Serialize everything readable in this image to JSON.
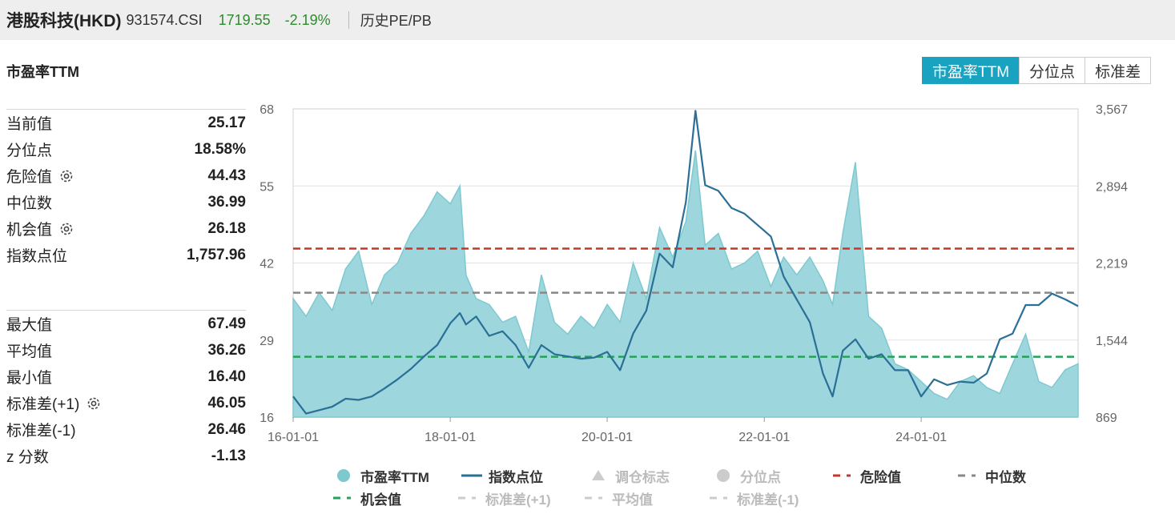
{
  "header": {
    "name": "港股科技(HKD)",
    "code": "931574.CSI",
    "price": "1719.55",
    "change": "-2.19%",
    "history_link": "历史PE/PB",
    "price_color": "#2e8b2e"
  },
  "section_title": "市盈率TTM",
  "buttons": [
    {
      "label": "市盈率TTM",
      "active": true
    },
    {
      "label": "分位点",
      "active": false
    },
    {
      "label": "标准差",
      "active": false
    }
  ],
  "stats_group1": [
    {
      "label": "当前值",
      "value": "25.17",
      "gear": false
    },
    {
      "label": "分位点",
      "value": "18.58%",
      "gear": false
    },
    {
      "label": "危险值",
      "value": "44.43",
      "gear": true
    },
    {
      "label": "中位数",
      "value": "36.99",
      "gear": false
    },
    {
      "label": "机会值",
      "value": "26.18",
      "gear": true
    },
    {
      "label": "指数点位",
      "value": "1,757.96",
      "gear": false
    }
  ],
  "stats_group2": [
    {
      "label": "最大值",
      "value": "67.49",
      "gear": false
    },
    {
      "label": "平均值",
      "value": "36.26",
      "gear": false
    },
    {
      "label": "最小值",
      "value": "16.40",
      "gear": false
    },
    {
      "label": "标准差(+1)",
      "value": "46.05",
      "gear": true
    },
    {
      "label": "标准差(-1)",
      "value": "26.46",
      "gear": false
    },
    {
      "label": "z 分数",
      "value": "-1.13",
      "gear": false
    }
  ],
  "legend": [
    [
      {
        "label": "市盈率TTM",
        "symbol": "circle",
        "color": "#7ec9d0",
        "active": true
      },
      {
        "label": "指数点位",
        "symbol": "line",
        "color": "#2a6f96",
        "active": true
      },
      {
        "label": "调仓标志",
        "symbol": "triangle",
        "color": "#cccccc",
        "active": false
      },
      {
        "label": "分位点",
        "symbol": "circle",
        "color": "#cccccc",
        "active": false
      },
      {
        "label": "危险值",
        "symbol": "dash",
        "color": "#c0392b",
        "active": true
      },
      {
        "label": "中位数",
        "symbol": "dash",
        "color": "#888888",
        "active": true
      }
    ],
    [
      {
        "label": "机会值",
        "symbol": "dash",
        "color": "#27a05a",
        "active": true
      },
      {
        "label": "标准差(+1)",
        "symbol": "dash",
        "color": "#cccccc",
        "active": false
      },
      {
        "label": "平均值",
        "symbol": "dash",
        "color": "#cccccc",
        "active": false
      },
      {
        "label": "标准差(-1)",
        "symbol": "dash",
        "color": "#cccccc",
        "active": false
      }
    ]
  ],
  "chart_data": {
    "type": "area",
    "x_ticks": [
      "16-01-01",
      "18-01-01",
      "20-01-01",
      "22-01-01",
      "24-01-01"
    ],
    "x_range": [
      "2016-01-01",
      "2025-12-31"
    ],
    "y_left_ticks": [
      "16",
      "29",
      "42",
      "55",
      "68"
    ],
    "y_left_range": [
      16,
      68
    ],
    "y_right_ticks": [
      "869",
      "1,544",
      "2,219",
      "2,894",
      "3,567"
    ],
    "y_right_range": [
      869,
      3567
    ],
    "ref_lines": [
      {
        "name": "危险值",
        "value": 44.43,
        "color": "#c0392b"
      },
      {
        "name": "中位数",
        "value": 36.99,
        "color": "#888888"
      },
      {
        "name": "机会值",
        "value": 26.18,
        "color": "#27a05a"
      }
    ],
    "series": [
      {
        "name": "市盈率TTM",
        "axis": "left",
        "color": "#7ec9d0",
        "x": [
          "2016-01-01",
          "2016-03-01",
          "2016-05-01",
          "2016-07-01",
          "2016-09-01",
          "2016-11-01",
          "2017-01-01",
          "2017-03-01",
          "2017-05-01",
          "2017-07-01",
          "2017-09-01",
          "2017-11-01",
          "2018-01-01",
          "2018-02-15",
          "2018-03-15",
          "2018-05-01",
          "2018-07-01",
          "2018-09-01",
          "2018-11-01",
          "2019-01-01",
          "2019-03-01",
          "2019-05-01",
          "2019-07-01",
          "2019-09-01",
          "2019-11-01",
          "2020-01-01",
          "2020-03-01",
          "2020-05-01",
          "2020-07-01",
          "2020-09-01",
          "2020-11-01",
          "2021-01-01",
          "2021-02-15",
          "2021-04-01",
          "2021-06-01",
          "2021-08-01",
          "2021-10-01",
          "2021-12-01",
          "2022-02-01",
          "2022-04-01",
          "2022-06-01",
          "2022-08-01",
          "2022-10-01",
          "2022-11-15",
          "2023-01-01",
          "2023-03-01",
          "2023-05-01",
          "2023-07-01",
          "2023-09-01",
          "2023-11-01",
          "2024-01-01",
          "2024-03-01",
          "2024-05-01",
          "2024-07-01",
          "2024-09-01",
          "2024-11-01",
          "2025-01-01",
          "2025-03-01",
          "2025-05-01",
          "2025-07-01",
          "2025-09-01",
          "2025-11-01",
          "2025-12-31"
        ],
        "y": [
          36,
          33,
          37,
          34,
          41,
          44,
          35,
          40,
          42,
          47,
          50,
          54,
          52,
          55,
          40,
          36,
          35,
          32,
          33,
          27,
          40,
          32,
          30,
          33,
          31,
          35,
          32,
          42,
          36,
          48,
          43,
          49,
          61,
          45,
          47,
          41,
          42,
          44,
          38,
          43,
          40,
          43,
          39,
          35,
          47,
          59,
          33,
          31,
          25,
          24,
          22,
          20,
          19,
          22,
          23,
          21,
          20,
          25,
          30,
          22,
          21,
          24,
          25
        ]
      },
      {
        "name": "指数点位",
        "axis": "right",
        "color": "#2a6f96",
        "x": [
          "2016-01-01",
          "2016-03-01",
          "2016-05-01",
          "2016-07-01",
          "2016-09-01",
          "2016-11-01",
          "2017-01-01",
          "2017-03-01",
          "2017-05-01",
          "2017-07-01",
          "2017-09-01",
          "2017-11-01",
          "2018-01-01",
          "2018-02-15",
          "2018-03-15",
          "2018-05-01",
          "2018-07-01",
          "2018-09-01",
          "2018-11-01",
          "2019-01-01",
          "2019-03-01",
          "2019-05-01",
          "2019-07-01",
          "2019-09-01",
          "2019-11-01",
          "2020-01-01",
          "2020-03-01",
          "2020-05-01",
          "2020-07-01",
          "2020-09-01",
          "2020-11-01",
          "2021-01-01",
          "2021-02-15",
          "2021-04-01",
          "2021-06-01",
          "2021-08-01",
          "2021-10-01",
          "2021-12-01",
          "2022-02-01",
          "2022-04-01",
          "2022-06-01",
          "2022-08-01",
          "2022-10-01",
          "2022-11-15",
          "2023-01-01",
          "2023-03-01",
          "2023-05-01",
          "2023-07-01",
          "2023-09-01",
          "2023-11-01",
          "2024-01-01",
          "2024-03-01",
          "2024-05-01",
          "2024-07-01",
          "2024-09-01",
          "2024-11-01",
          "2025-01-01",
          "2025-03-01",
          "2025-05-01",
          "2025-07-01",
          "2025-09-01",
          "2025-11-01",
          "2025-12-31"
        ],
        "y": [
          1050,
          900,
          930,
          960,
          1030,
          1020,
          1050,
          1120,
          1200,
          1290,
          1400,
          1500,
          1690,
          1780,
          1680,
          1750,
          1580,
          1620,
          1500,
          1300,
          1500,
          1420,
          1400,
          1380,
          1390,
          1440,
          1280,
          1600,
          1800,
          2300,
          2180,
          2750,
          3550,
          2900,
          2850,
          2700,
          2650,
          2550,
          2450,
          2100,
          1900,
          1700,
          1250,
          1050,
          1450,
          1550,
          1380,
          1420,
          1280,
          1280,
          1050,
          1200,
          1150,
          1180,
          1170,
          1250,
          1550,
          1600,
          1850,
          1850,
          1950,
          1900,
          1840
        ]
      }
    ]
  }
}
